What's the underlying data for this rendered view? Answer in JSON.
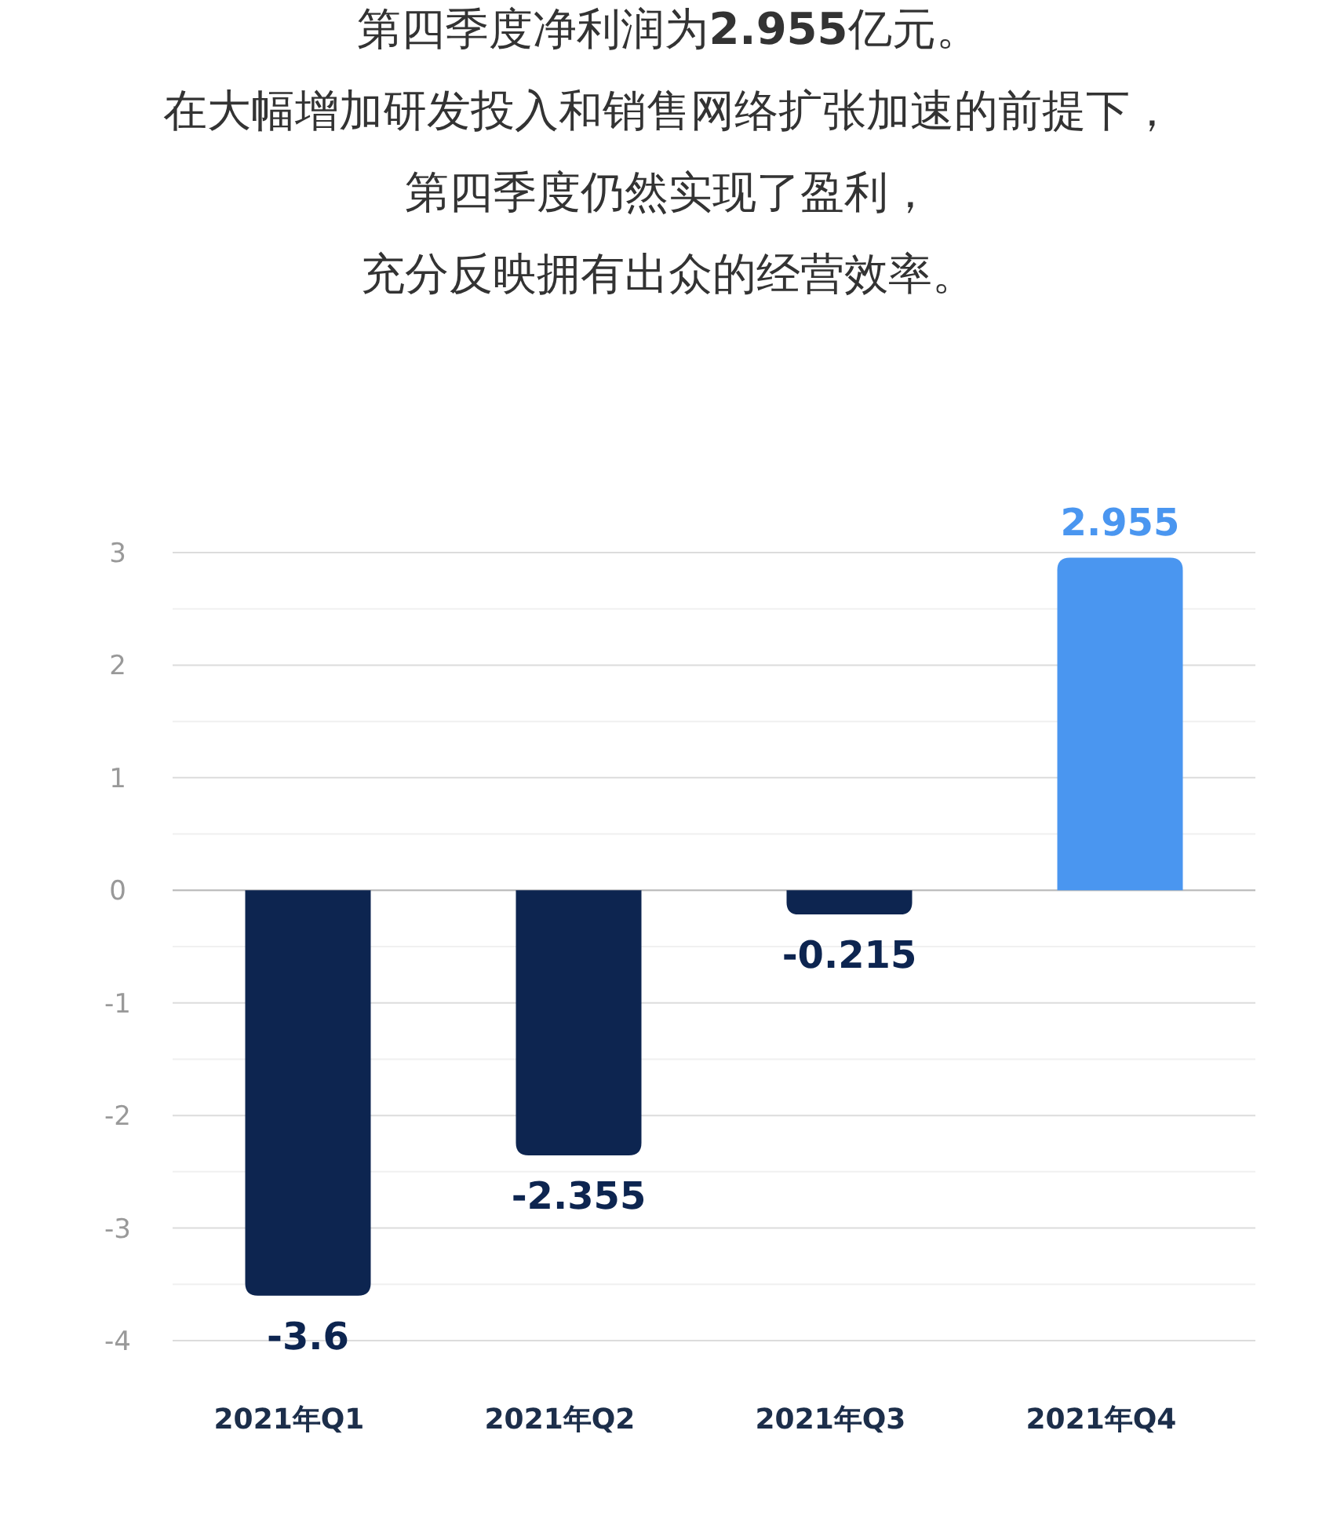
{
  "chart_data": {
    "type": "bar",
    "title": "第四季度净利润为**2.955**亿元。",
    "annotations": [
      "在大幅增加研发投入和销售网络扩张加速的前提下，",
      "第四季度仍然实现了盈利，",
      "充分反映拥有出众的经营效率。"
    ],
    "categories": [
      "2021年Q1",
      "2021年Q2",
      "2021年Q3",
      "2021年Q4"
    ],
    "values": [
      -3.6,
      -2.355,
      -0.215,
      2.955
    ],
    "colors": [
      "#0d2550",
      "#0d2550",
      "#0d2550",
      "#4a96f0"
    ],
    "ylim": [
      -4,
      3
    ],
    "yticks": [
      -4,
      -3,
      -2,
      -1,
      0,
      1,
      2,
      3
    ],
    "grid": "y",
    "data_labels": true
  }
}
